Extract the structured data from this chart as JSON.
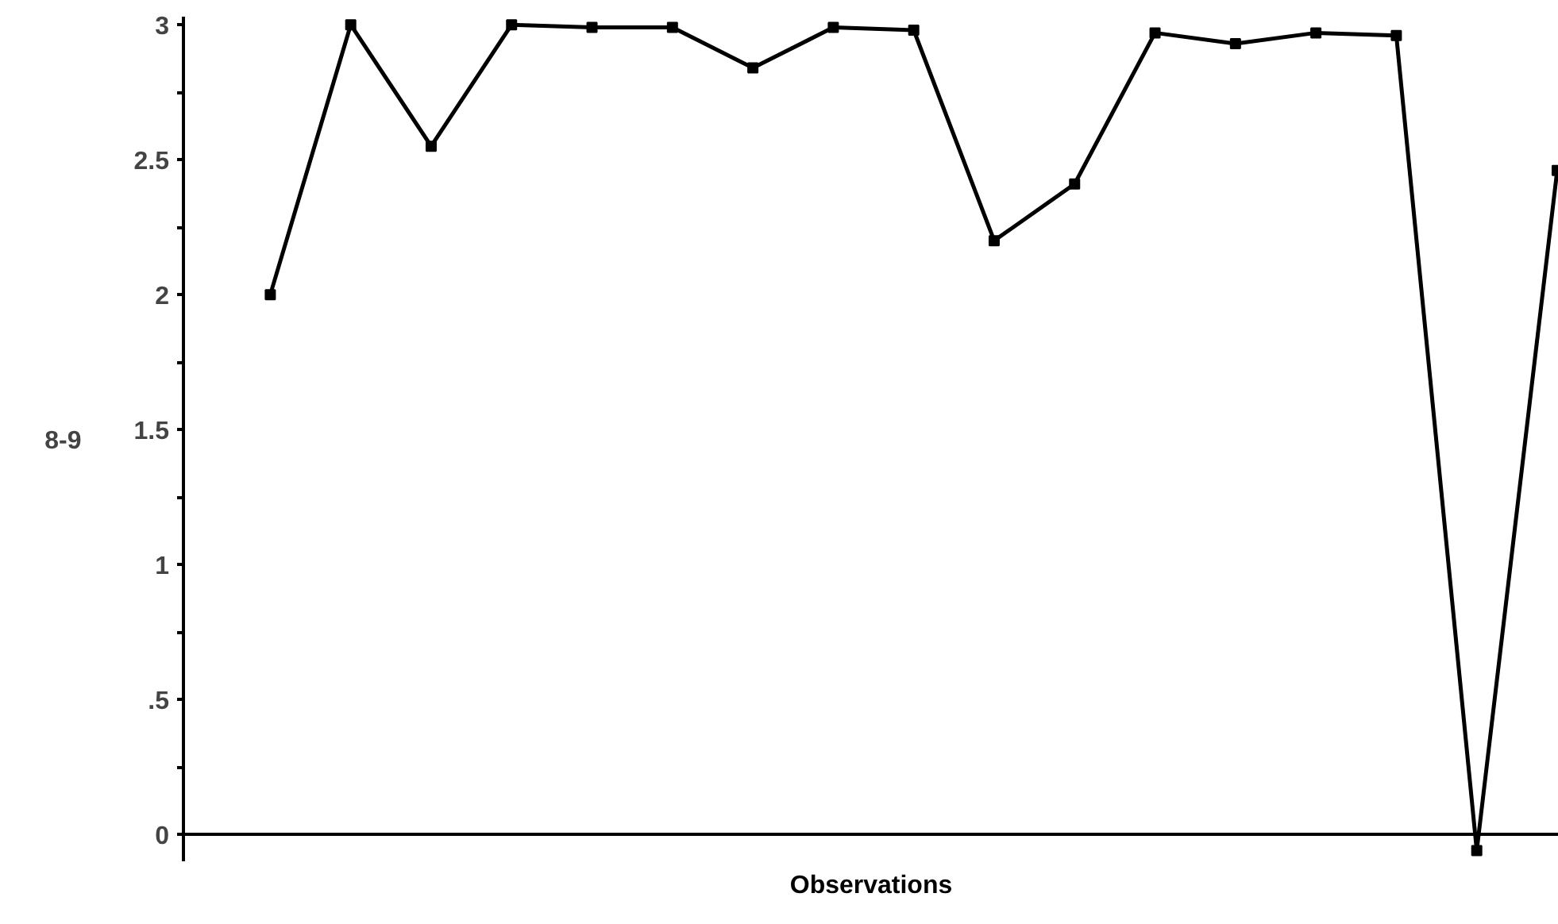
{
  "chart_data": {
    "type": "line",
    "xlabel": "Observations",
    "ylabel": "8-9",
    "categories": [
      null,
      null,
      null,
      null,
      null,
      null,
      null,
      null,
      null,
      null,
      null,
      null,
      null,
      null,
      null,
      null,
      null
    ],
    "values": [
      2.0,
      3.0,
      2.55,
      3.0,
      2.99,
      2.99,
      2.84,
      2.99,
      2.98,
      2.2,
      2.41,
      2.97,
      2.93,
      2.97,
      2.96,
      -0.06,
      2.46
    ],
    "color": "#000000",
    "marker": "square",
    "line_style": "solid",
    "ylim": [
      -0.1,
      3.03
    ],
    "yticks": [
      0,
      {
        "value": 0.25,
        "label": null
      },
      {
        "value": 0.5,
        "label": ".5"
      },
      {
        "value": 0.75,
        "label": null
      },
      1,
      {
        "value": 1.25,
        "label": null
      },
      1.5,
      {
        "value": 1.75,
        "label": null
      },
      2,
      {
        "value": 2.25,
        "label": null
      },
      2.5,
      {
        "value": 2.75,
        "label": null
      },
      3
    ]
  }
}
